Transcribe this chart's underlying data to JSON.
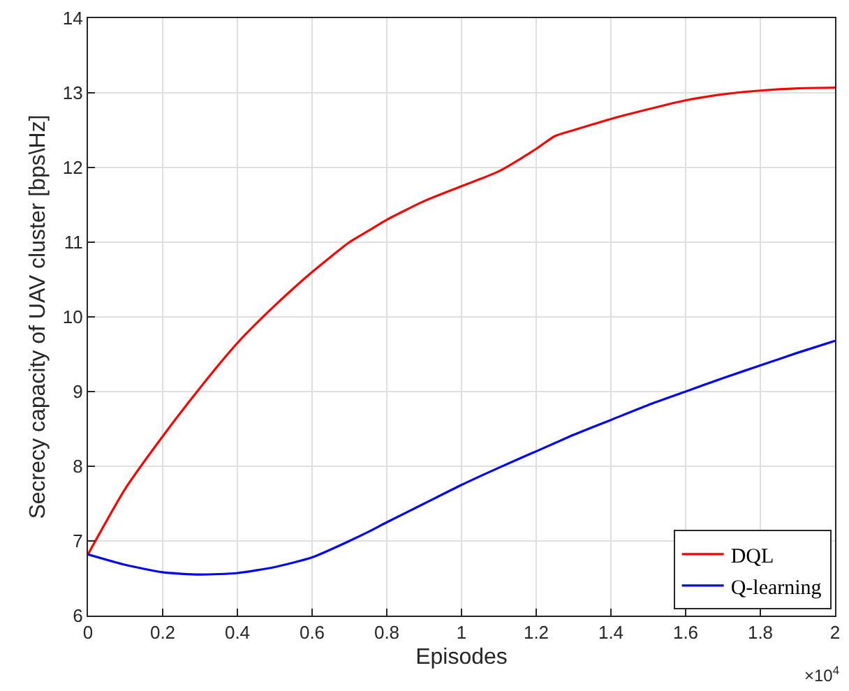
{
  "chart_data": {
    "type": "line",
    "xlabel": "Episodes",
    "ylabel": "Secrecy capacity of UAV cluster [bps\\Hz]",
    "x": [
      0,
      0.1,
      0.2,
      0.3,
      0.4,
      0.5,
      0.6,
      0.7,
      0.75,
      0.8,
      0.9,
      1.0,
      1.1,
      1.2,
      1.25,
      1.3,
      1.4,
      1.5,
      1.6,
      1.7,
      1.8,
      1.9,
      2.0
    ],
    "series": [
      {
        "name": "DQL",
        "color": "#ff0000",
        "values": [
          6.82,
          7.7,
          8.4,
          9.05,
          9.65,
          10.15,
          10.6,
          11.0,
          11.15,
          11.3,
          11.55,
          11.75,
          11.95,
          12.25,
          12.42,
          12.5,
          12.65,
          12.78,
          12.9,
          12.98,
          13.03,
          13.06,
          13.07
        ]
      },
      {
        "name": "Q-learning",
        "color": "#0000ff",
        "values": [
          6.82,
          6.68,
          6.58,
          6.55,
          6.57,
          6.65,
          6.78,
          7.0,
          7.12,
          7.25,
          7.5,
          7.75,
          7.98,
          8.2,
          8.31,
          8.42,
          8.62,
          8.82,
          9.0,
          9.18,
          9.35,
          9.52,
          9.68
        ]
      }
    ],
    "xlim": [
      0,
      2
    ],
    "xticks": [
      0,
      0.2,
      0.4,
      0.6,
      0.8,
      1,
      1.2,
      1.4,
      1.6,
      1.8,
      2
    ],
    "ylim": [
      6,
      14
    ],
    "yticks": [
      6,
      7,
      8,
      9,
      10,
      11,
      12,
      13,
      14
    ],
    "annotations": [
      "×10$^{4}$"
    ],
    "grid": true,
    "legend": "bottom right",
    "marker": "none",
    "line_style": "solid"
  }
}
